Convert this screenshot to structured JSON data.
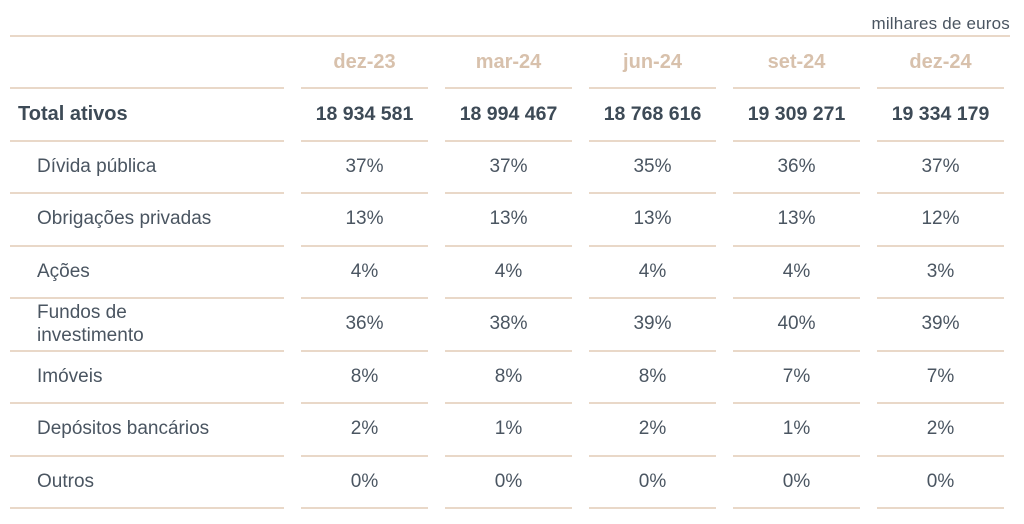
{
  "unit_note": "milhares de euros",
  "columns": [
    "dez-23",
    "mar-24",
    "jun-24",
    "set-24",
    "dez-24"
  ],
  "total": {
    "label": "Total ativos",
    "values": [
      "18 934 581",
      "18 994 467",
      "18 768 616",
      "19 309 271",
      "19 334 179"
    ]
  },
  "rows": [
    {
      "label": "Dívida pública",
      "values": [
        "37%",
        "37%",
        "35%",
        "36%",
        "37%"
      ]
    },
    {
      "label": "Obrigações privadas",
      "values": [
        "13%",
        "13%",
        "13%",
        "13%",
        "12%"
      ]
    },
    {
      "label": "Ações",
      "values": [
        "4%",
        "4%",
        "4%",
        "4%",
        "3%"
      ]
    },
    {
      "label": "Fundos de investimento",
      "values": [
        "36%",
        "38%",
        "39%",
        "40%",
        "39%"
      ]
    },
    {
      "label": "Imóveis",
      "values": [
        "8%",
        "8%",
        "8%",
        "7%",
        "7%"
      ]
    },
    {
      "label": "Depósitos bancários",
      "values": [
        "2%",
        "1%",
        "2%",
        "1%",
        "2%"
      ]
    },
    {
      "label": "Outros",
      "values": [
        "0%",
        "0%",
        "0%",
        "0%",
        "0%"
      ]
    }
  ]
}
